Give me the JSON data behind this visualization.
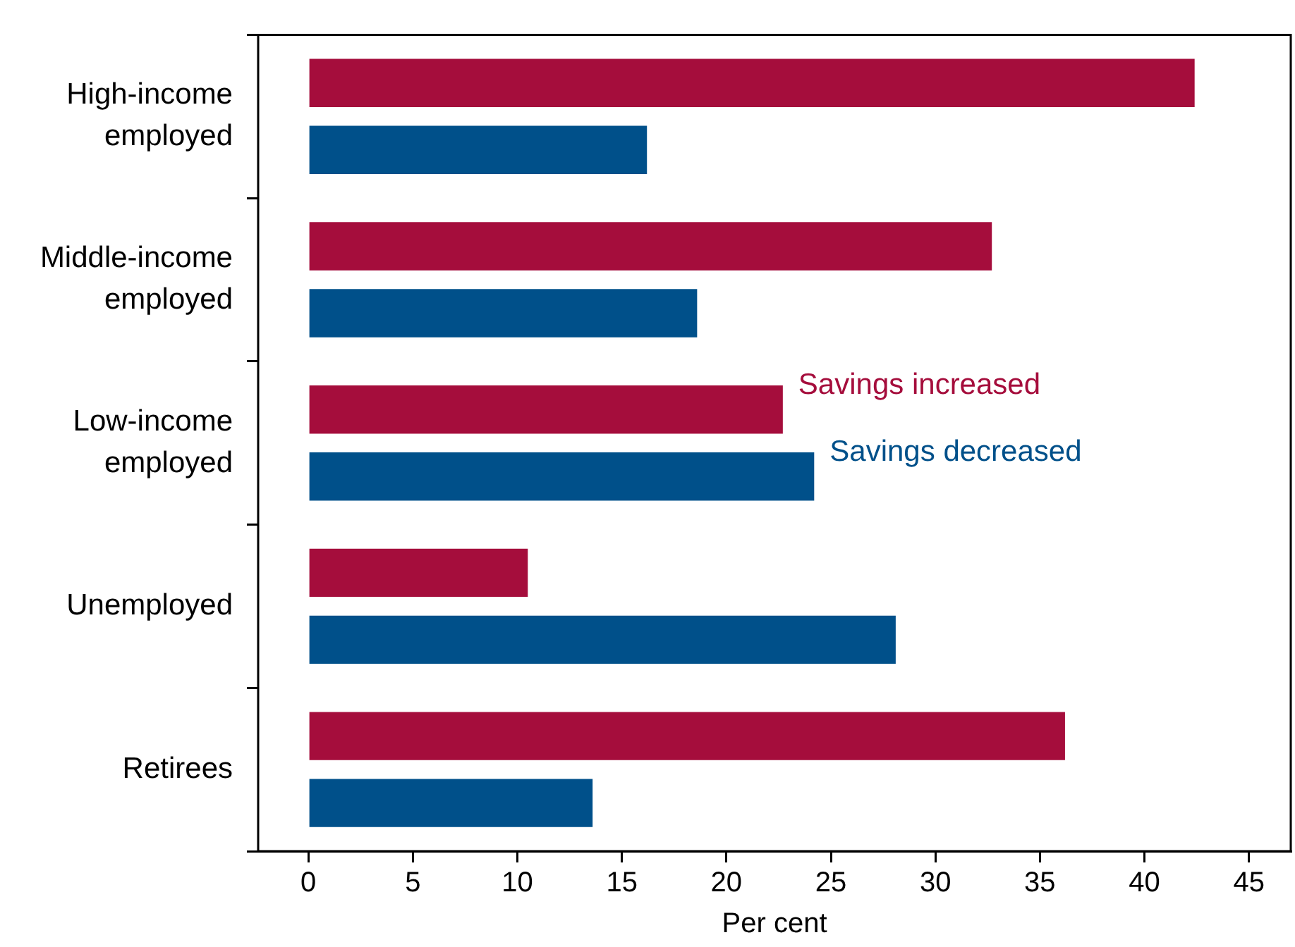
{
  "chart_data": {
    "type": "bar",
    "orientation": "horizontal",
    "xlabel": "Per cent",
    "categories": [
      "High-income employed",
      "Middle-income employed",
      "Low-income employed",
      "Unemployed",
      "Retirees"
    ],
    "series": [
      {
        "name": "Savings increased",
        "color": "#a50d3c",
        "values": [
          42.4,
          32.7,
          22.7,
          10.5,
          36.2
        ]
      },
      {
        "name": "Savings decreased",
        "color": "#00508a",
        "values": [
          16.2,
          18.6,
          24.2,
          28.1,
          13.6
        ]
      }
    ],
    "xlim": [
      -2.4,
      47
    ],
    "xticks": [
      0,
      5,
      10,
      15,
      20,
      25,
      30,
      35,
      40,
      45
    ],
    "grid": false,
    "legend": false
  }
}
